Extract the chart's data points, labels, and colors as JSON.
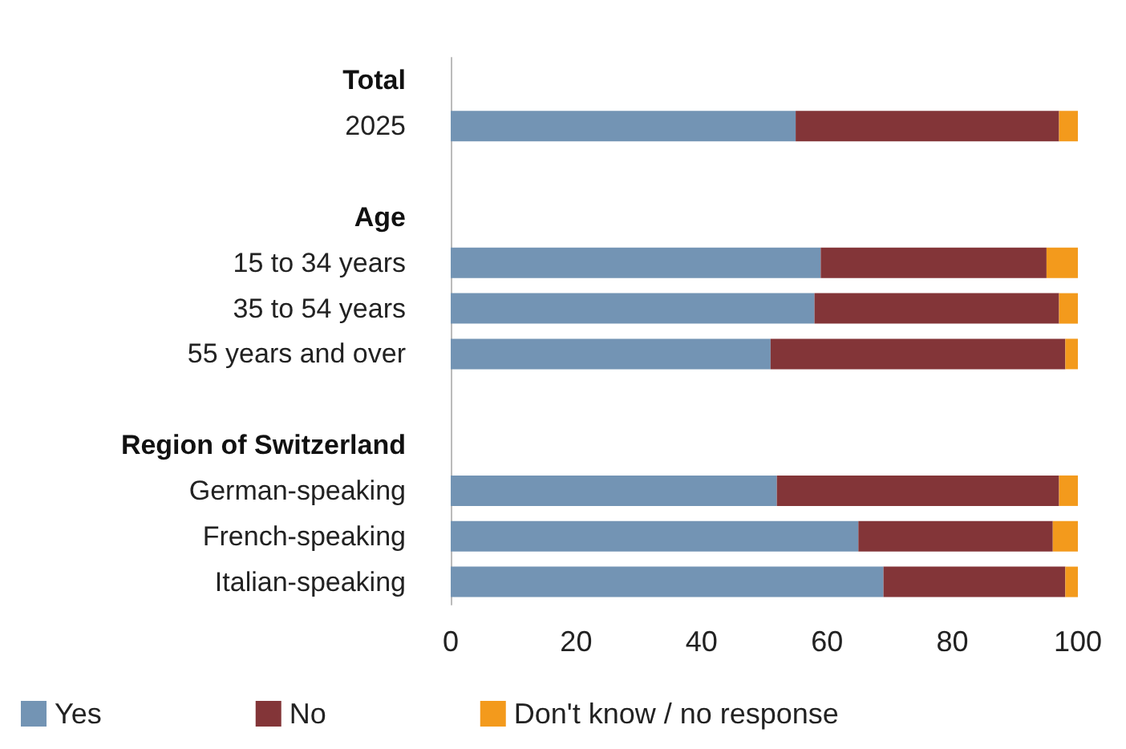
{
  "chart_data": {
    "type": "bar",
    "orientation": "horizontal",
    "stacked": true,
    "categories": [
      "Total",
      "2025",
      null,
      "Age",
      "15 to 34 years",
      "35 to 54 years",
      "55 years and over",
      null,
      "Region of Switzerland",
      "German-speaking",
      "French-speaking",
      "Italian-speaking"
    ],
    "series": [
      {
        "name": "Yes",
        "color": "#7394b4",
        "values": [
          null,
          55,
          null,
          null,
          59,
          58,
          51,
          null,
          null,
          52,
          65,
          69
        ]
      },
      {
        "name": "No",
        "color": "#833538",
        "values": [
          null,
          42,
          null,
          null,
          36,
          39,
          47,
          null,
          null,
          45,
          31,
          29
        ]
      },
      {
        "name": "Don't know / no response",
        "color": "#f39a1c",
        "values": [
          null,
          3,
          null,
          null,
          5,
          3,
          2,
          null,
          null,
          3,
          4,
          2
        ]
      }
    ],
    "xlim": [
      0,
      100
    ],
    "xticks": [
      0,
      20,
      40,
      60,
      80,
      100
    ],
    "grid": false,
    "legend": "bottom left"
  }
}
